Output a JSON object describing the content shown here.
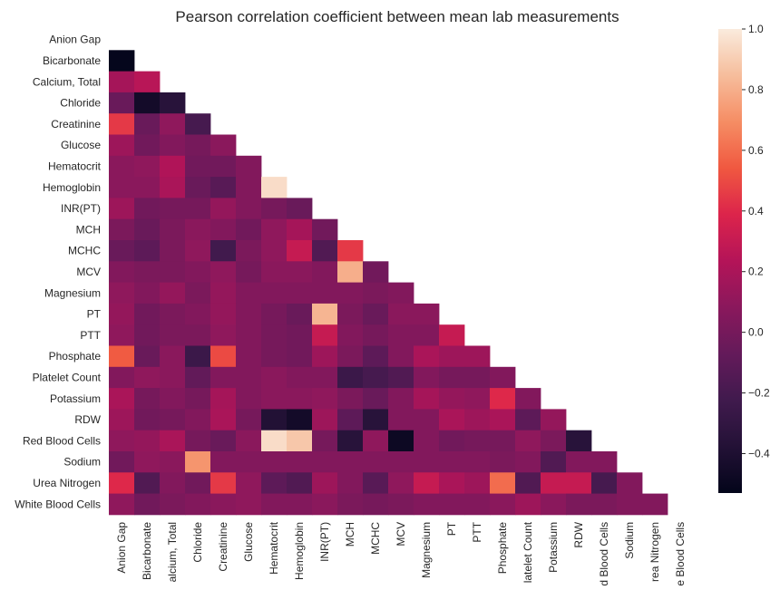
{
  "chart_data": {
    "type": "heatmap",
    "title": "Pearson correlation coefficient between mean lab measurements",
    "mask": "upper-triangle",
    "row_labels": [
      "Anion Gap",
      "Bicarbonate",
      "Calcium, Total",
      "Chloride",
      "Creatinine",
      "Glucose",
      "Hematocrit",
      "Hemoglobin",
      "INR(PT)",
      "MCH",
      "MCHC",
      "MCV",
      "Magnesium",
      "PT",
      "PTT",
      "Phosphate",
      "Platelet Count",
      "Potassium",
      "RDW",
      "Red Blood Cells",
      "Sodium",
      "Urea Nitrogen",
      "White Blood Cells"
    ],
    "col_labels": [
      "Anion Gap",
      "Bicarbonate",
      "alcium, Total",
      "Chloride",
      "Creatinine",
      "Glucose",
      "Hematocrit",
      "Hemoglobin",
      "INR(PT)",
      "MCH",
      "MCHC",
      "MCV",
      "Magnesium",
      "PT",
      "PTT",
      "Phosphate",
      "latelet Count",
      "Potassium",
      "RDW",
      "d Blood Cells",
      "Sodium",
      "rea Nitrogen",
      "e Blood Cells"
    ],
    "values": [
      [],
      [
        -0.52
      ],
      [
        0.18,
        0.25
      ],
      [
        -0.05,
        -0.45,
        -0.35
      ],
      [
        0.45,
        -0.05,
        0.1,
        -0.2
      ],
      [
        0.15,
        -0.02,
        0.05,
        0.0,
        0.08
      ],
      [
        0.08,
        0.1,
        0.22,
        -0.02,
        -0.02,
        0.05
      ],
      [
        0.08,
        0.08,
        0.2,
        -0.05,
        -0.12,
        0.05,
        0.95
      ],
      [
        0.15,
        -0.02,
        0.0,
        0.0,
        0.12,
        0.05,
        0.0,
        -0.05
      ],
      [
        0.02,
        -0.05,
        0.02,
        0.08,
        0.05,
        -0.02,
        0.1,
        0.18,
        -0.02
      ],
      [
        -0.05,
        -0.1,
        0.02,
        0.1,
        -0.22,
        0.02,
        0.1,
        0.3,
        -0.15,
        0.45
      ],
      [
        0.05,
        0.02,
        0.02,
        0.05,
        0.1,
        0.0,
        0.08,
        0.08,
        0.05,
        0.8,
        -0.02
      ],
      [
        0.1,
        0.05,
        0.12,
        0.02,
        0.12,
        0.05,
        0.05,
        0.05,
        0.05,
        0.05,
        0.02,
        0.05
      ],
      [
        0.12,
        -0.02,
        0.02,
        0.05,
        0.12,
        0.05,
        0.0,
        -0.05,
        0.82,
        0.02,
        -0.05,
        0.08,
        0.08
      ],
      [
        0.1,
        -0.02,
        0.02,
        0.02,
        0.1,
        0.05,
        0.0,
        -0.02,
        0.3,
        0.05,
        0.0,
        0.05,
        0.05,
        0.3
      ],
      [
        0.55,
        -0.05,
        0.08,
        -0.25,
        0.5,
        0.05,
        0.0,
        -0.02,
        0.15,
        0.02,
        -0.1,
        0.05,
        0.2,
        0.15,
        0.15
      ],
      [
        0.05,
        0.1,
        0.08,
        -0.08,
        0.05,
        0.05,
        0.08,
        0.05,
        0.05,
        -0.25,
        -0.2,
        -0.15,
        0.05,
        0.0,
        0.0,
        0.05
      ],
      [
        0.2,
        0.0,
        0.05,
        0.0,
        0.18,
        0.05,
        0.08,
        0.08,
        0.1,
        0.02,
        -0.05,
        0.05,
        0.18,
        0.12,
        0.1,
        0.4,
        0.05
      ],
      [
        0.15,
        -0.02,
        0.0,
        0.05,
        0.2,
        0.0,
        -0.38,
        -0.45,
        0.15,
        -0.1,
        -0.35,
        0.05,
        0.05,
        0.2,
        0.15,
        0.2,
        -0.1,
        0.12
      ],
      [
        0.1,
        0.12,
        0.2,
        0.0,
        -0.05,
        0.08,
        0.95,
        0.88,
        0.0,
        -0.35,
        0.1,
        -0.48,
        0.05,
        -0.02,
        0.0,
        0.0,
        0.1,
        0.02,
        -0.35
      ],
      [
        -0.02,
        0.1,
        0.08,
        0.72,
        0.05,
        0.05,
        0.05,
        0.05,
        0.05,
        0.05,
        0.05,
        0.05,
        0.05,
        0.05,
        0.05,
        0.02,
        0.05,
        -0.15,
        0.05,
        0.05
      ],
      [
        0.4,
        -0.15,
        0.05,
        -0.02,
        0.45,
        0.1,
        -0.1,
        -0.15,
        0.15,
        0.05,
        -0.12,
        0.1,
        0.3,
        0.2,
        0.15,
        0.6,
        -0.15,
        0.3,
        0.3,
        -0.2,
        0.05
      ],
      [
        0.1,
        -0.02,
        0.02,
        0.05,
        0.08,
        0.1,
        0.05,
        0.05,
        0.08,
        0.02,
        0.0,
        0.02,
        0.05,
        0.05,
        0.05,
        0.08,
        0.15,
        0.08,
        0.02,
        0.02,
        0.05,
        0.05
      ]
    ],
    "colorbar": {
      "vmin": -0.53,
      "vmax": 1.0,
      "ticks": [
        1.0,
        0.8,
        0.6,
        0.4,
        0.2,
        0.0,
        -0.2,
        -0.4
      ],
      "tick_labels": [
        "1.0",
        "0.8",
        "0.6",
        "0.4",
        "0.2",
        "0.0",
        "−0.2",
        "−0.4"
      ]
    }
  }
}
